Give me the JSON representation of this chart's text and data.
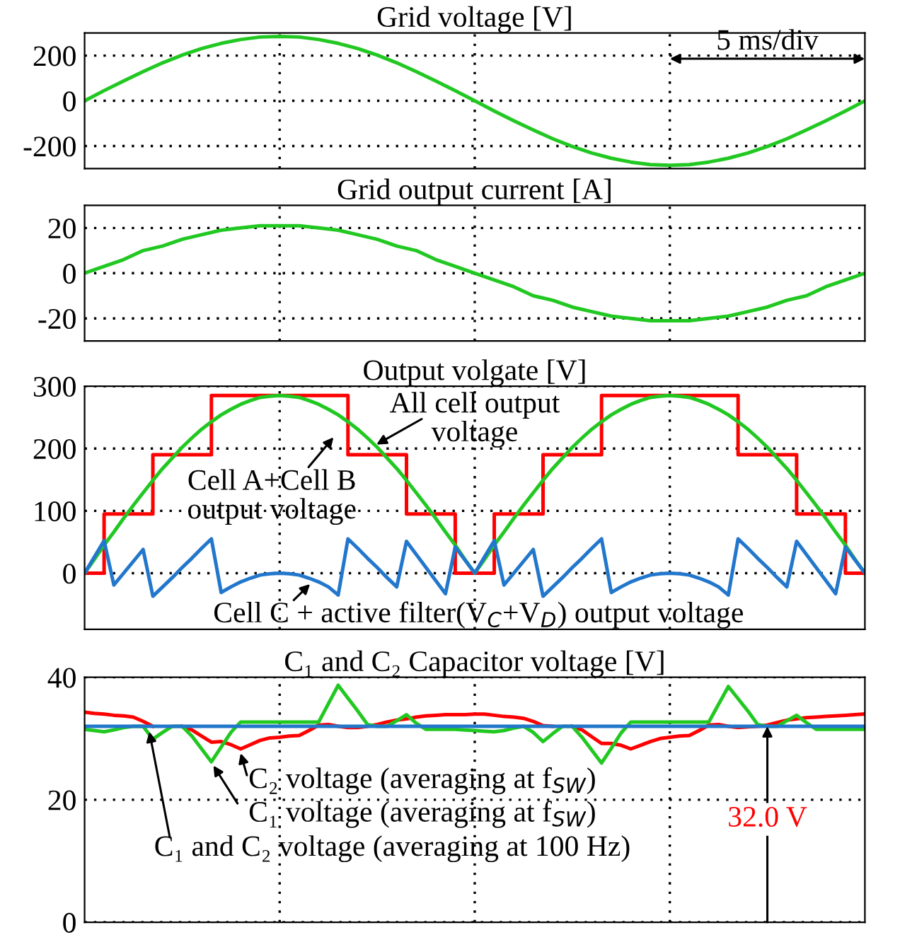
{
  "chart_data": [
    {
      "type": "line",
      "title": "Grid voltage [V]",
      "tick_labels": "y",
      "grid": true,
      "ylim": [
        -300,
        300
      ],
      "yticks": [
        -200,
        0,
        200
      ],
      "annotations": [
        "5 ms/div"
      ],
      "categories": [
        null,
        null,
        null,
        null,
        null,
        null,
        null,
        null,
        null,
        null,
        null,
        null,
        null,
        null,
        null,
        null,
        null,
        null,
        null,
        null,
        null,
        null,
        null,
        null,
        null,
        null,
        null,
        null,
        null,
        null,
        null,
        null,
        null,
        null,
        null,
        null,
        null,
        null,
        null,
        null,
        null
      ],
      "series": [
        {
          "color": "#22c822",
          "values": [
            0,
            45,
            88,
            129,
            168,
            202,
            231,
            254,
            271,
            282,
            285,
            282,
            271,
            254,
            231,
            202,
            168,
            129,
            88,
            45,
            0,
            -45,
            -88,
            -129,
            -168,
            -202,
            -231,
            -254,
            -271,
            -282,
            -285,
            -282,
            -271,
            -254,
            -231,
            -202,
            -168,
            -129,
            -88,
            -45,
            0
          ]
        }
      ]
    },
    {
      "type": "line",
      "title": "Grid output current [A]",
      "tick_labels": "y",
      "grid": true,
      "ylim": [
        -30,
        30
      ],
      "yticks": [
        -20,
        0,
        20
      ],
      "categories": [
        null,
        null,
        null,
        null,
        null,
        null,
        null,
        null,
        null,
        null,
        null,
        null,
        null,
        null,
        null,
        null,
        null,
        null,
        null,
        null,
        null,
        null,
        null,
        null,
        null,
        null,
        null,
        null,
        null,
        null,
        null,
        null,
        null,
        null,
        null,
        null,
        null,
        null,
        null,
        null,
        null
      ],
      "series": [
        {
          "color": "#22c822",
          "values": [
            0,
            3,
            6,
            10,
            12,
            15,
            17,
            19,
            20,
            21,
            21,
            21,
            20,
            19,
            17,
            15,
            12,
            10,
            6,
            3,
            0,
            -3,
            -6,
            -10,
            -12,
            -15,
            -17,
            -19,
            -20,
            -21,
            -21,
            -21,
            -20,
            -19,
            -17,
            -15,
            -12,
            -10,
            -6,
            -3,
            0
          ]
        }
      ]
    },
    {
      "type": "line",
      "title": "Output volgate [V]",
      "tick_labels": "y",
      "grid": true,
      "ylim": [
        -90,
        300
      ],
      "yticks": [
        0,
        100,
        200,
        300
      ],
      "annotations": [
        "All cell output\nvoltage",
        "Cell A+Cell B\noutput voltage",
        "Cell C + active filter(V$_{C}$+V$_{D}$) output voltage"
      ],
      "categories": [
        null,
        null,
        null,
        null,
        null,
        null,
        null,
        null,
        null,
        null,
        null,
        null,
        null,
        null,
        null,
        null,
        null,
        null,
        null,
        null,
        null,
        null,
        null,
        null,
        null,
        null,
        null,
        null,
        null,
        null,
        null,
        null,
        null,
        null,
        null,
        null,
        null,
        null,
        null,
        null,
        null,
        null,
        null,
        null,
        null,
        null,
        null,
        null,
        null,
        null,
        null,
        null,
        null,
        null,
        null,
        null,
        null,
        null,
        null,
        null,
        null,
        null,
        null,
        null,
        null,
        null,
        null,
        null,
        null,
        null,
        null,
        null,
        null,
        null,
        null,
        null,
        null,
        null,
        null,
        null,
        null
      ],
      "series": [
        {
          "type": "step",
          "color": "#ff0000",
          "values": [
            0,
            0,
            95,
            95,
            95,
            95,
            95,
            190,
            190,
            190,
            190,
            190,
            190,
            285,
            285,
            285,
            285,
            285,
            285,
            285,
            285,
            285,
            285,
            285,
            285,
            285,
            285,
            190,
            190,
            190,
            190,
            190,
            190,
            95,
            95,
            95,
            95,
            95,
            0,
            0,
            0,
            0,
            95,
            95,
            95,
            95,
            95,
            190,
            190,
            190,
            190,
            190,
            190,
            285,
            285,
            285,
            285,
            285,
            285,
            285,
            285,
            285,
            285,
            285,
            285,
            285,
            285,
            190,
            190,
            190,
            190,
            190,
            190,
            95,
            95,
            95,
            95,
            95,
            0,
            0,
            0
          ]
        },
        {
          "color": "#22c822",
          "values": [
            0,
            22,
            45,
            66,
            88,
            109,
            129,
            149,
            168,
            185,
            202,
            217,
            231,
            243,
            254,
            263,
            271,
            277,
            282,
            284,
            285,
            284,
            282,
            277,
            271,
            263,
            254,
            243,
            231,
            217,
            202,
            185,
            168,
            149,
            129,
            109,
            88,
            66,
            45,
            22,
            0,
            22,
            45,
            66,
            88,
            109,
            129,
            149,
            168,
            185,
            202,
            217,
            231,
            243,
            254,
            263,
            271,
            277,
            282,
            284,
            285,
            284,
            282,
            277,
            271,
            263,
            254,
            243,
            231,
            217,
            202,
            185,
            168,
            149,
            129,
            109,
            88,
            66,
            45,
            22,
            0
          ]
        },
        {
          "color": "#2277cc",
          "values": [
            0,
            26,
            52,
            -19,
            0,
            19,
            38,
            -37,
            -22,
            -7,
            9,
            24,
            40,
            55,
            -31,
            -22,
            -14,
            -8,
            -3,
            -1,
            0,
            -1,
            -3,
            -8,
            -14,
            -22,
            -35,
            55,
            40,
            24,
            9,
            -7,
            -22,
            51,
            30,
            9,
            -12,
            -33,
            42,
            21,
            0,
            26,
            52,
            -19,
            0,
            19,
            38,
            -37,
            -22,
            -7,
            9,
            24,
            40,
            55,
            -31,
            -22,
            -14,
            -8,
            -3,
            -1,
            0,
            -1,
            -3,
            -8,
            -14,
            -22,
            -35,
            55,
            40,
            24,
            9,
            -7,
            -22,
            51,
            30,
            9,
            -12,
            -33,
            42,
            21,
            0
          ]
        }
      ]
    },
    {
      "type": "line",
      "title": "C₁ and C₂ Capacitor voltage [V]",
      "tick_labels": "y",
      "grid": true,
      "ylim": [
        0,
        40
      ],
      "yticks": [
        0,
        20,
        40
      ],
      "annotations": [
        "C₂ voltage (averaging at f$_{SW}$)",
        "C₁ voltage (averaging at f$_{SW}$)",
        "C₁ and C₂ voltage (averaging at 100 Hz)",
        "32.0 V"
      ],
      "categories": [
        null,
        null,
        null,
        null,
        null,
        null,
        null,
        null,
        null,
        null,
        null,
        null,
        null,
        null,
        null,
        null,
        null,
        null,
        null,
        null,
        null,
        null,
        null,
        null,
        null,
        null,
        null,
        null,
        null,
        null,
        null,
        null,
        null,
        null,
        null,
        null,
        null,
        null,
        null,
        null,
        null,
        null,
        null,
        null,
        null,
        null,
        null,
        null,
        null,
        null,
        null,
        null,
        null,
        null,
        null,
        null,
        null,
        null,
        null,
        null,
        null,
        null,
        null,
        null,
        null,
        null,
        null,
        null,
        null,
        null,
        null,
        null,
        null,
        null,
        null,
        null,
        null,
        null,
        null,
        null,
        null
      ],
      "series": [
        {
          "color": "#ff0000",
          "values": [
            34.3,
            34.1,
            34,
            33.8,
            33.7,
            33.5,
            32.8,
            32,
            null,
            null,
            32,
            31.4,
            30.4,
            29.4,
            29.5,
            29,
            28.3,
            29,
            29.7,
            30.1,
            30.2,
            30.4,
            30.5,
            31.3,
            32.2,
            32.3,
            32,
            31.8,
            31.8,
            32,
            32.3,
            32.7,
            33,
            33.2,
            33.5,
            33.7,
            33.8,
            33.9,
            33.9,
            33.9,
            34,
            34,
            33.8,
            33.6,
            33.5,
            33.3,
            32.8,
            32.1,
            32,
            null,
            32,
            31.4,
            30.3,
            29.2,
            29.2,
            28.9,
            28.3,
            28.9,
            29.5,
            30,
            30.2,
            30.4,
            30.5,
            31.3,
            32.2,
            32.3,
            32,
            31.8,
            31.9,
            32,
            32.2,
            32.6,
            33,
            33.2,
            33.4,
            33.5,
            33.6,
            33.7,
            33.8,
            33.9,
            34
          ]
        },
        {
          "color": "#22c822",
          "values": [
            31.5,
            31.3,
            31.1,
            31.4,
            31.8,
            32,
            32,
            29.9,
            31,
            32,
            32,
            30.4,
            28.3,
            26.2,
            28.6,
            31,
            32.7,
            32.7,
            32.7,
            32.7,
            32.7,
            32.7,
            32.7,
            32.7,
            32.7,
            35.7,
            38.7,
            36.6,
            34.5,
            32.3,
            32,
            32,
            32.9,
            33.9,
            32.5,
            31.5,
            31.5,
            31.5,
            31.5,
            31.4,
            31.3,
            31.2,
            31.1,
            31.3,
            31.7,
            32,
            31,
            29.5,
            30.8,
            32,
            32,
            30.2,
            28.1,
            26,
            28.4,
            30.9,
            32.7,
            32.7,
            32.7,
            32.7,
            32.7,
            32.7,
            32.7,
            32.7,
            32.7,
            35.6,
            38.5,
            36.5,
            34.5,
            32.3,
            32,
            32,
            32.9,
            33.8,
            32.6,
            31.5,
            31.5,
            31.5,
            31.5,
            31.5,
            31.5
          ]
        },
        {
          "color": "#2277cc",
          "values": [
            32,
            32,
            32,
            32,
            32,
            32,
            32,
            32,
            32,
            32,
            32,
            32,
            32,
            32,
            32,
            32,
            32,
            32,
            32,
            32,
            32,
            32,
            32,
            32,
            32,
            32,
            32,
            32,
            32,
            32,
            32,
            32,
            32,
            32,
            32,
            32,
            32,
            32,
            32,
            32,
            32,
            32,
            32,
            32,
            32,
            32,
            32,
            32,
            32,
            32,
            32,
            32,
            32,
            32,
            32,
            32,
            32,
            32,
            32,
            32,
            32,
            32,
            32,
            32,
            32,
            32,
            32,
            32,
            32,
            32,
            32,
            32,
            32,
            32,
            32,
            32,
            32,
            32,
            32,
            32,
            32
          ]
        }
      ]
    }
  ]
}
